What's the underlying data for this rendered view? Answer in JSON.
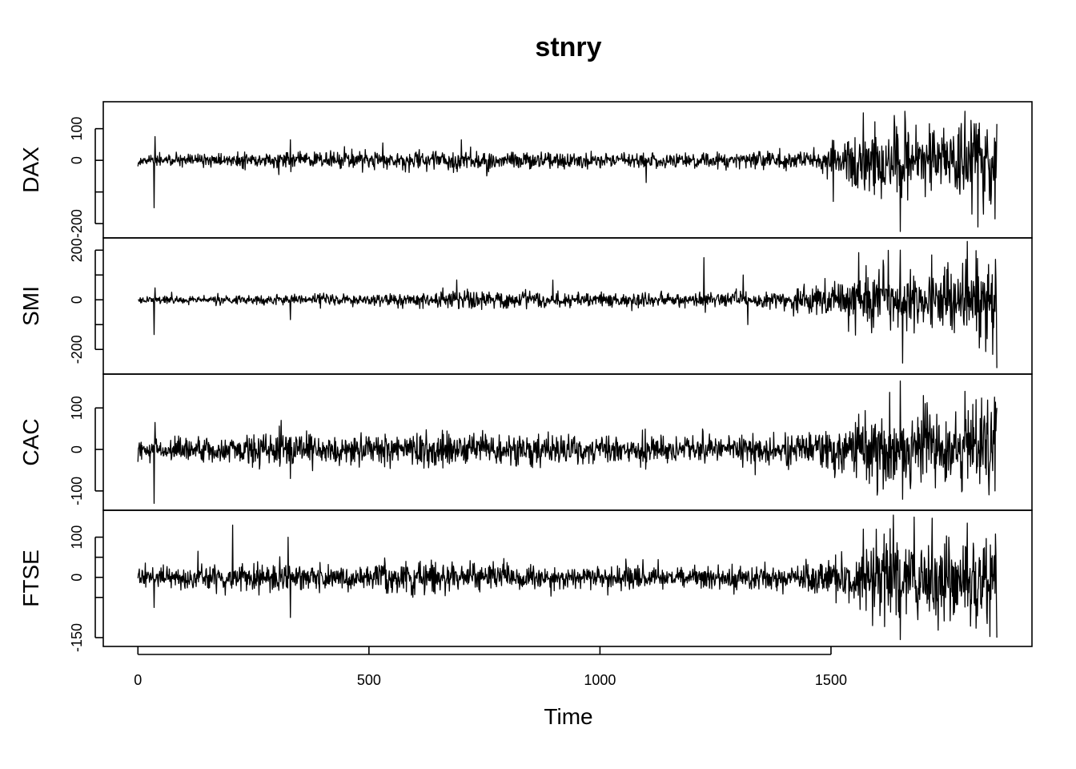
{
  "chart_data": {
    "type": "line",
    "title": "stnry",
    "xlabel": "Time",
    "xlim": [
      -75,
      1935
    ],
    "xticks": [
      0,
      500,
      1000,
      1500
    ],
    "n_points": 1860,
    "line_color": "#000000",
    "panels": [
      {
        "name": "DAX",
        "ylim": [
          -230,
          170
        ],
        "yticks": [
          -200,
          -100,
          0,
          100
        ],
        "yticklabels": [
          "-200",
          "",
          "0",
          "100"
        ],
        "volatility_profile": [
          [
            0,
            8
          ],
          [
            150,
            10
          ],
          [
            300,
            12
          ],
          [
            500,
            14
          ],
          [
            700,
            16
          ],
          [
            900,
            14
          ],
          [
            1100,
            12
          ],
          [
            1300,
            12
          ],
          [
            1450,
            14
          ],
          [
            1520,
            35
          ],
          [
            1600,
            60
          ],
          [
            1700,
            55
          ],
          [
            1800,
            60
          ],
          [
            1860,
            70
          ]
        ],
        "key_points": [
          [
            35,
            -150
          ],
          [
            37,
            75
          ],
          [
            305,
            -45
          ],
          [
            330,
            65
          ],
          [
            530,
            55
          ],
          [
            700,
            65
          ],
          [
            1100,
            -70
          ],
          [
            1505,
            -130
          ],
          [
            1570,
            150
          ],
          [
            1650,
            -225
          ],
          [
            1660,
            155
          ],
          [
            1790,
            155
          ],
          [
            1805,
            -170
          ],
          [
            1830,
            -170
          ],
          [
            1855,
            -185
          ],
          [
            1860,
            115
          ]
        ]
      },
      {
        "name": "SMI",
        "ylim": [
          -280,
          230
        ],
        "yticks": [
          -200,
          -100,
          0,
          100,
          200
        ],
        "yticklabels": [
          "-200",
          "",
          "0",
          "",
          "200"
        ],
        "volatility_profile": [
          [
            0,
            7
          ],
          [
            200,
            9
          ],
          [
            400,
            11
          ],
          [
            600,
            14
          ],
          [
            700,
            20
          ],
          [
            800,
            16
          ],
          [
            1000,
            14
          ],
          [
            1200,
            14
          ],
          [
            1400,
            16
          ],
          [
            1500,
            40
          ],
          [
            1600,
            65
          ],
          [
            1700,
            65
          ],
          [
            1800,
            70
          ],
          [
            1860,
            85
          ]
        ],
        "key_points": [
          [
            35,
            -140
          ],
          [
            37,
            48
          ],
          [
            330,
            -80
          ],
          [
            690,
            80
          ],
          [
            1225,
            170
          ],
          [
            1310,
            100
          ],
          [
            1320,
            -100
          ],
          [
            1560,
            190
          ],
          [
            1650,
            200
          ],
          [
            1655,
            -255
          ],
          [
            1795,
            235
          ],
          [
            1850,
            -220
          ],
          [
            1860,
            -275
          ]
        ]
      },
      {
        "name": "CAC",
        "ylim": [
          -135,
          170
        ],
        "yticks": [
          -100,
          0,
          100
        ],
        "yticklabels": [
          "-100",
          "0",
          "100"
        ],
        "volatility_profile": [
          [
            0,
            12
          ],
          [
            200,
            15
          ],
          [
            300,
            22
          ],
          [
            400,
            18
          ],
          [
            600,
            20
          ],
          [
            800,
            18
          ],
          [
            1000,
            16
          ],
          [
            1200,
            16
          ],
          [
            1400,
            18
          ],
          [
            1500,
            25
          ],
          [
            1600,
            40
          ],
          [
            1700,
            40
          ],
          [
            1800,
            45
          ],
          [
            1860,
            55
          ]
        ],
        "key_points": [
          [
            0,
            -30
          ],
          [
            35,
            -130
          ],
          [
            37,
            65
          ],
          [
            310,
            70
          ],
          [
            330,
            -70
          ],
          [
            1560,
            85
          ],
          [
            1600,
            -110
          ],
          [
            1650,
            165
          ],
          [
            1655,
            -120
          ],
          [
            1700,
            130
          ],
          [
            1790,
            140
          ],
          [
            1855,
            -100
          ],
          [
            1860,
            100
          ]
        ]
      },
      {
        "name": "FTSE",
        "ylim": [
          -160,
          155
        ],
        "yticks": [
          -150,
          -50,
          0,
          50,
          100
        ],
        "yticklabels": [
          "-150",
          "",
          "0",
          "",
          "100"
        ],
        "volatility_profile": [
          [
            0,
            12
          ],
          [
            200,
            15
          ],
          [
            300,
            17
          ],
          [
            500,
            15
          ],
          [
            600,
            20
          ],
          [
            700,
            18
          ],
          [
            900,
            15
          ],
          [
            1100,
            14
          ],
          [
            1300,
            14
          ],
          [
            1450,
            16
          ],
          [
            1550,
            35
          ],
          [
            1600,
            55
          ],
          [
            1700,
            50
          ],
          [
            1800,
            55
          ],
          [
            1860,
            65
          ]
        ],
        "key_points": [
          [
            35,
            -75
          ],
          [
            130,
            65
          ],
          [
            205,
            130
          ],
          [
            325,
            100
          ],
          [
            330,
            -100
          ],
          [
            1570,
            120
          ],
          [
            1590,
            -120
          ],
          [
            1635,
            155
          ],
          [
            1650,
            -155
          ],
          [
            1680,
            150
          ],
          [
            1795,
            135
          ],
          [
            1860,
            -150
          ]
        ]
      }
    ]
  }
}
